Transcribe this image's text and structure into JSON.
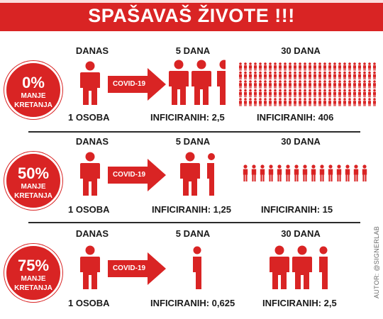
{
  "header": {
    "title": "SPAŠAVAŠ ŽIVOTE !!!"
  },
  "colors": {
    "accent": "#d92424",
    "text": "#1a1a1a",
    "divider": "#2b2b2b"
  },
  "rows": [
    {
      "badge_pct": "0%",
      "badge_line1": "MANJE",
      "badge_line2": "KRETANJA",
      "col1_label": "DANAS",
      "col2_label": "5 DANA",
      "col3_label": "30 DANA",
      "arrow_label": "COVID-19",
      "today_count": "1 OSOBA",
      "day5_count": "INFICIRANIH: 2,5",
      "day30_count": "INFICIRANIH: 406",
      "day5_infected": 2.5,
      "day30_infected": 406
    },
    {
      "badge_pct": "50%",
      "badge_line1": "MANJE",
      "badge_line2": "KRETANJA",
      "col1_label": "DANAS",
      "col2_label": "5 DANA",
      "col3_label": "30 DANA",
      "arrow_label": "COVID-19",
      "today_count": "1 OSOBA",
      "day5_count": "INFICIRANIH: 1,25",
      "day30_count": "INFICIRANIH: 15",
      "day5_infected": 1.25,
      "day30_infected": 15
    },
    {
      "badge_pct": "75%",
      "badge_line1": "MANJE",
      "badge_line2": "KRETANJA",
      "col1_label": "DANAS",
      "col2_label": "5 DANA",
      "col3_label": "30 DANA",
      "arrow_label": "COVID-19",
      "today_count": "1 OSOBA",
      "day5_count": "INFICIRANIH: 0,625",
      "day30_count": "INFICIRANIH: 2,5",
      "day5_infected": 0.625,
      "day30_infected": 2.5
    }
  ],
  "credit": "AUTOR: @SIGNERLAB"
}
